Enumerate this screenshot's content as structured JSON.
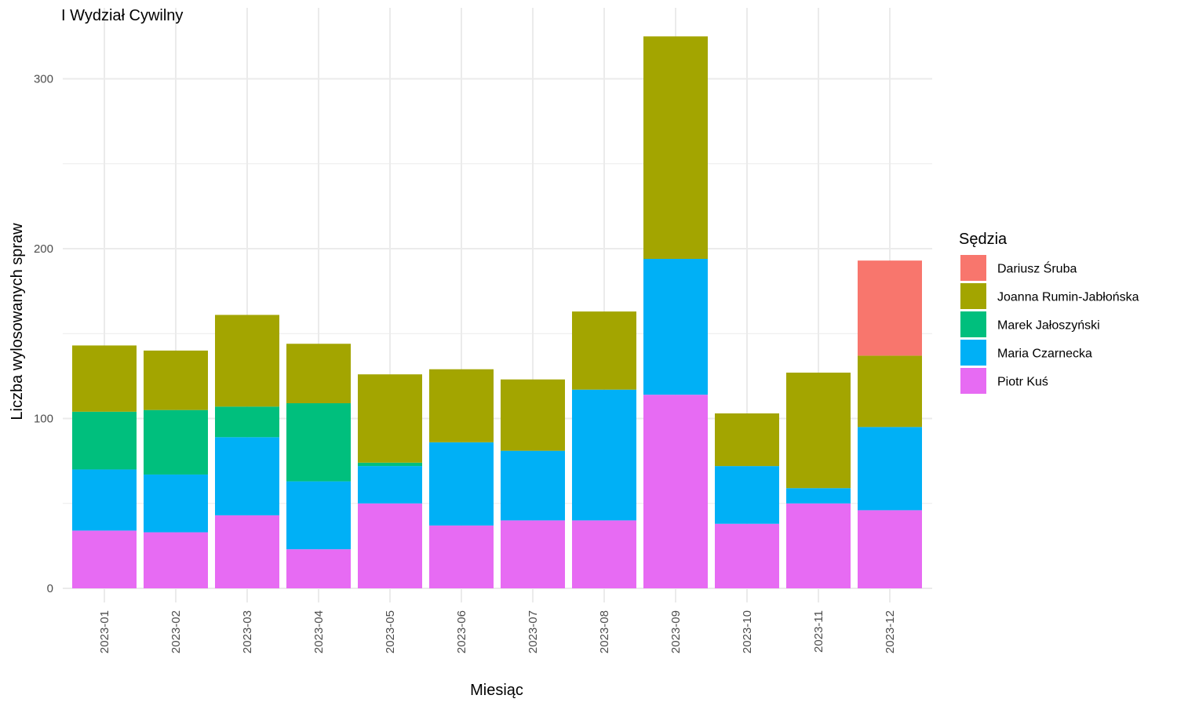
{
  "chart_data": {
    "type": "bar",
    "stacked": true,
    "title": "I Wydział Cywilny",
    "xlabel": "Miesiąc",
    "ylabel": "Liczba wylosowanych spraw",
    "ylim": [
      0,
      330
    ],
    "y_ticks": [
      0,
      100,
      200,
      300
    ],
    "grid": true,
    "legend": {
      "title": "Sędzia",
      "placement": "right"
    },
    "categories": [
      "2023-01",
      "2023-02",
      "2023-03",
      "2023-04",
      "2023-05",
      "2023-06",
      "2023-07",
      "2023-08",
      "2023-09",
      "2023-10",
      "2023-11",
      "2023-12"
    ],
    "series": [
      {
        "name": "Dariusz Śruba",
        "color": "#F8766D",
        "values": [
          0,
          0,
          0,
          0,
          0,
          0,
          0,
          0,
          0,
          0,
          0,
          56
        ]
      },
      {
        "name": "Joanna Rumin-Jabłońska",
        "color": "#A3A500",
        "values": [
          39,
          35,
          54,
          35,
          52,
          43,
          42,
          46,
          131,
          31,
          68,
          42
        ]
      },
      {
        "name": "Marek Jałoszyński",
        "color": "#00BF7D",
        "values": [
          34,
          38,
          18,
          46,
          2,
          0,
          0,
          0,
          0,
          0,
          0,
          0
        ]
      },
      {
        "name": "Maria Czarnecka",
        "color": "#00B0F6",
        "values": [
          36,
          34,
          46,
          40,
          22,
          49,
          41,
          77,
          80,
          34,
          9,
          49
        ]
      },
      {
        "name": "Piotr Kuś",
        "color": "#E76BF3",
        "values": [
          34,
          33,
          43,
          23,
          50,
          37,
          40,
          40,
          114,
          38,
          50,
          46
        ]
      }
    ]
  }
}
